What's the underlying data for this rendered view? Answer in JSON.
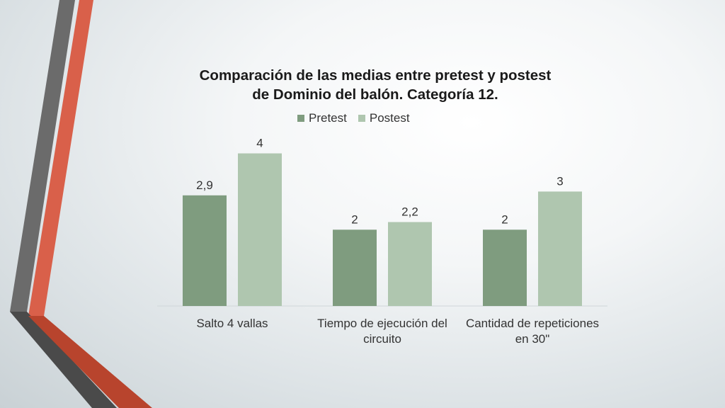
{
  "colors": {
    "pretest": "#7f9c7f",
    "postest": "#afc6af",
    "stripe_gray": "#6b6b6b",
    "stripe_orange": "#d9604a",
    "stripe_dark_orange": "#b8442d"
  },
  "chart_data": {
    "type": "bar",
    "title_lines": [
      "Comparación de las medias entre pretest y postest",
      "de Dominio del balón. Categoría 12."
    ],
    "categories": [
      [
        "Salto 4 vallas"
      ],
      [
        "Tiempo de ejecución del",
        "circuito"
      ],
      [
        "Cantidad de repeticiones",
        "en 30\""
      ]
    ],
    "series": [
      {
        "name": "Pretest",
        "values": [
          2.9,
          2,
          2
        ],
        "labels": [
          "2,9",
          "2",
          "2"
        ]
      },
      {
        "name": "Postest",
        "values": [
          4,
          2.2,
          3
        ],
        "labels": [
          "4",
          "2,2",
          "3"
        ]
      }
    ],
    "ylim": [
      0,
      4.4
    ],
    "legend": "top",
    "grid": false
  }
}
